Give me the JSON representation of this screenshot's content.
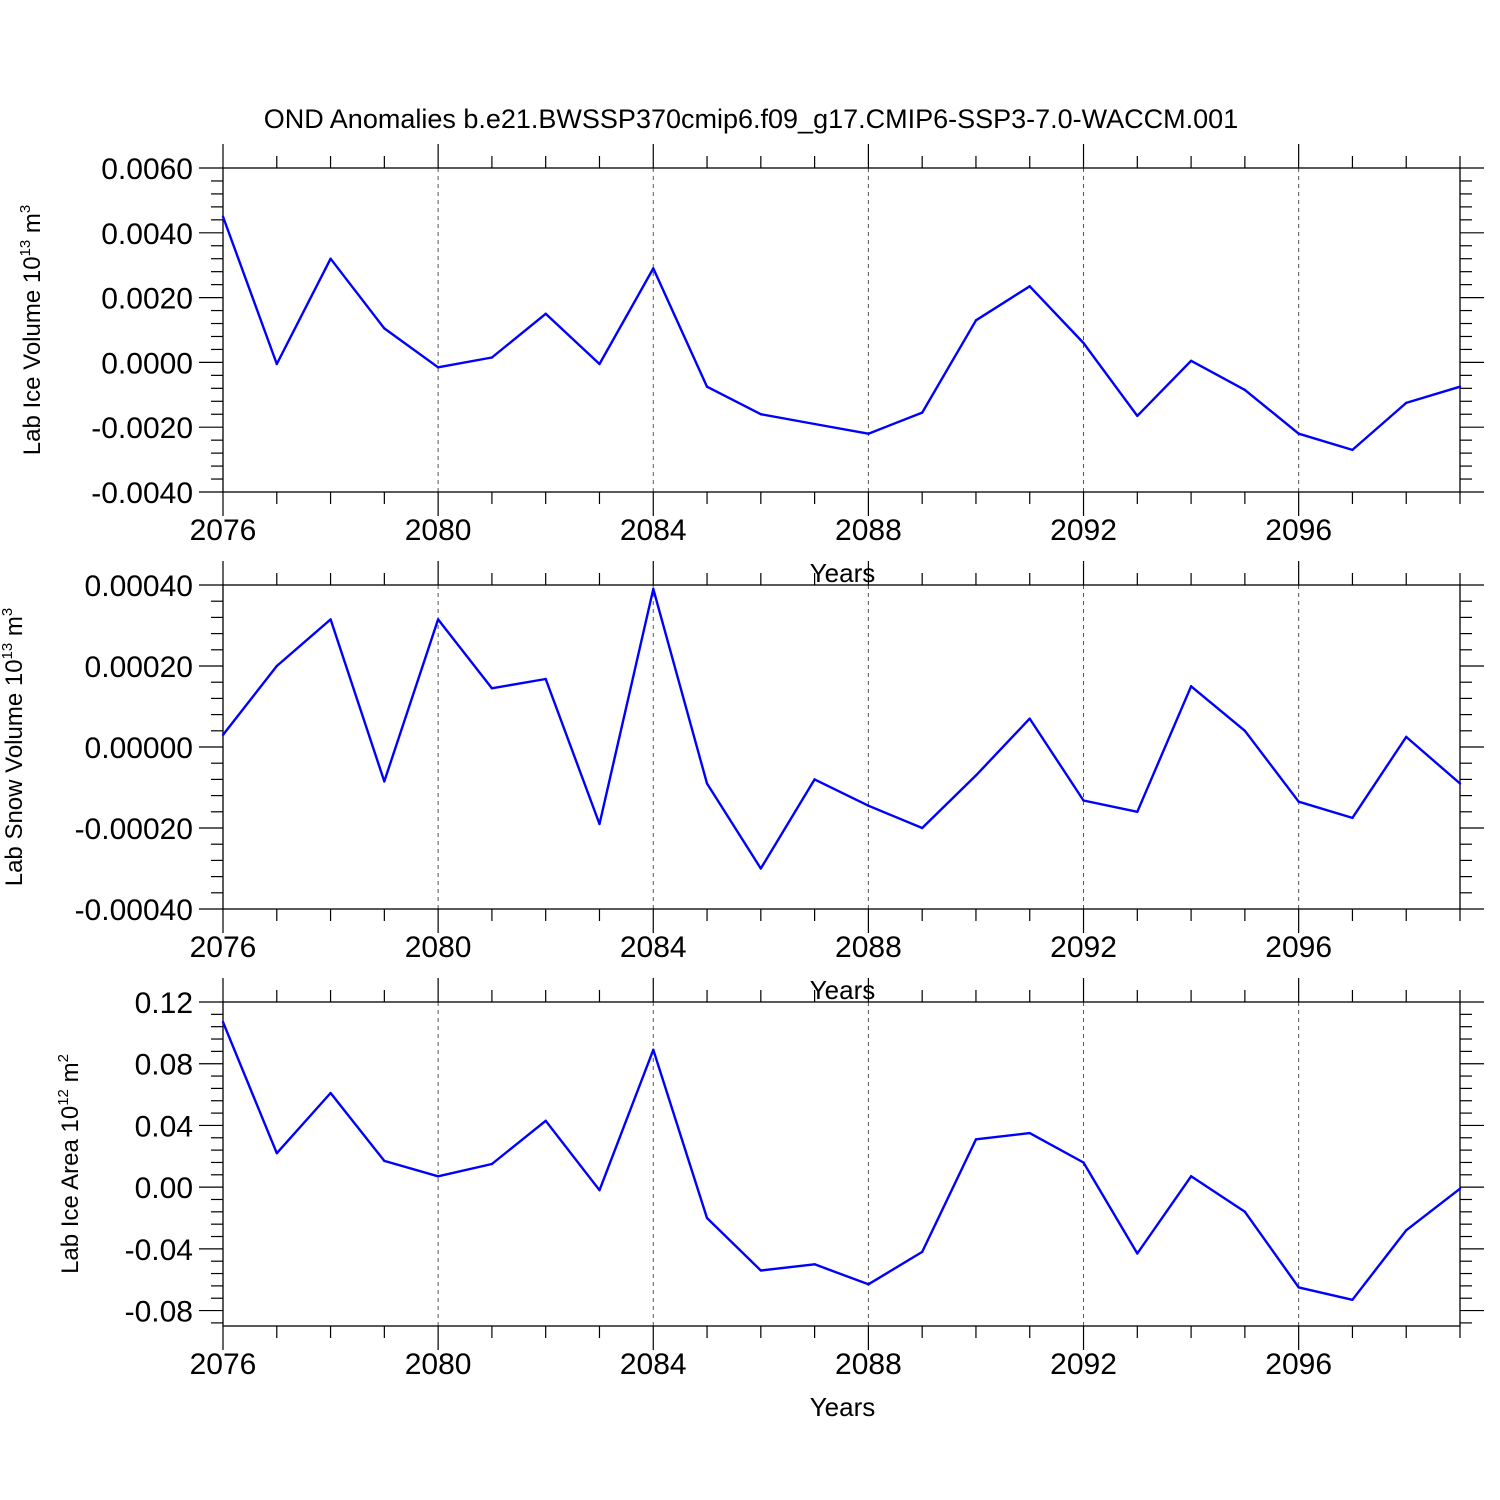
{
  "figure_title": "OND Anomalies b.e21.BWSSP370cmip6.f09_g17.CMIP6-SSP3-7.0-WACCM.001",
  "colors": {
    "line": "#0000ff",
    "axis": "#000000",
    "grid": "#555555"
  },
  "chart_data": [
    {
      "type": "line",
      "title": "",
      "xlabel": "Years",
      "ylabel": "Lab Ice Volume 10^13 m^3",
      "ylabel_parts": {
        "base": "Lab Ice Volume 10",
        "exp": "13",
        "unit": "m",
        "unit_exp": "3"
      },
      "x": [
        2076,
        2077,
        2078,
        2079,
        2080,
        2081,
        2082,
        2083,
        2084,
        2085,
        2086,
        2087,
        2088,
        2089,
        2090,
        2091,
        2092,
        2093,
        2094,
        2095,
        2096,
        2097,
        2098,
        2099
      ],
      "values": [
        0.0045,
        -5e-05,
        0.0032,
        0.00105,
        -0.00015,
        0.00015,
        0.0015,
        -5e-05,
        0.0029,
        -0.00075,
        -0.0016,
        -0.0019,
        -0.0022,
        -0.00155,
        0.0013,
        0.00235,
        0.0006,
        -0.00165,
        5e-05,
        -0.00085,
        -0.0022,
        -0.0027,
        -0.00125,
        -0.00075
      ],
      "xlim": [
        2076,
        2099
      ],
      "ylim": [
        -0.004,
        0.006
      ],
      "yticks": [
        -0.004,
        -0.002,
        0.0,
        0.002,
        0.004,
        0.006
      ],
      "ytick_labels": [
        "-0.0040",
        "-0.0020",
        "0.0000",
        "0.0020",
        "0.0040",
        "0.0060"
      ],
      "xticks": [
        2076,
        2080,
        2084,
        2088,
        2092,
        2096
      ],
      "xtick_labels": [
        "2076",
        "2080",
        "2084",
        "2088",
        "2092",
        "2096"
      ],
      "grid": "vertical dashed at major x ticks"
    },
    {
      "type": "line",
      "title": "",
      "xlabel": "Years",
      "ylabel": "Lab Snow Volume 10^13 m^3",
      "ylabel_parts": {
        "base": "Lab Snow Volume 10",
        "exp": "13",
        "unit": "m",
        "unit_exp": "3"
      },
      "x": [
        2076,
        2077,
        2078,
        2079,
        2080,
        2081,
        2082,
        2083,
        2084,
        2085,
        2086,
        2087,
        2088,
        2089,
        2090,
        2091,
        2092,
        2093,
        2094,
        2095,
        2096,
        2097,
        2098,
        2099
      ],
      "values": [
        3e-05,
        0.0002,
        0.000315,
        -8.5e-05,
        0.000315,
        0.000145,
        0.000168,
        -0.00019,
        0.00039,
        -9e-05,
        -0.0003,
        -8e-05,
        -0.000145,
        -0.0002,
        -7e-05,
        7e-05,
        -0.000132,
        -0.00016,
        0.00015,
        4e-05,
        -0.000135,
        -0.000175,
        2.5e-05,
        -9e-05
      ],
      "xlim": [
        2076,
        2099
      ],
      "ylim": [
        -0.0004,
        0.0004
      ],
      "yticks": [
        -0.0004,
        -0.0002,
        0.0,
        0.0002,
        0.0004
      ],
      "ytick_labels": [
        "-0.00040",
        "-0.00020",
        "0.00000",
        "0.00020",
        "0.00040"
      ],
      "xticks": [
        2076,
        2080,
        2084,
        2088,
        2092,
        2096
      ],
      "xtick_labels": [
        "2076",
        "2080",
        "2084",
        "2088",
        "2092",
        "2096"
      ],
      "grid": "vertical dashed at major x ticks"
    },
    {
      "type": "line",
      "title": "",
      "xlabel": "Years",
      "ylabel": "Lab Ice Area 10^12 m^2",
      "ylabel_parts": {
        "base": "Lab Ice Area 10",
        "exp": "12",
        "unit": "m",
        "unit_exp": "2"
      },
      "x": [
        2076,
        2077,
        2078,
        2079,
        2080,
        2081,
        2082,
        2083,
        2084,
        2085,
        2086,
        2087,
        2088,
        2089,
        2090,
        2091,
        2092,
        2093,
        2094,
        2095,
        2096,
        2097,
        2098,
        2099
      ],
      "values": [
        0.107,
        0.022,
        0.061,
        0.017,
        0.007,
        0.015,
        0.043,
        -0.002,
        0.089,
        -0.02,
        -0.054,
        -0.05,
        -0.063,
        -0.042,
        0.031,
        0.035,
        0.016,
        -0.043,
        0.007,
        -0.016,
        -0.065,
        -0.073,
        -0.028,
        -0.001
      ],
      "xlim": [
        2076,
        2099
      ],
      "ylim": [
        -0.09,
        0.12
      ],
      "yticks": [
        -0.08,
        -0.04,
        0.0,
        0.04,
        0.08,
        0.12
      ],
      "ytick_labels": [
        "-0.08",
        "-0.04",
        "0.00",
        "0.04",
        "0.08",
        "0.12"
      ],
      "xticks": [
        2076,
        2080,
        2084,
        2088,
        2092,
        2096
      ],
      "xtick_labels": [
        "2076",
        "2080",
        "2084",
        "2088",
        "2092",
        "2096"
      ],
      "grid": "vertical dashed at major x ticks"
    }
  ]
}
